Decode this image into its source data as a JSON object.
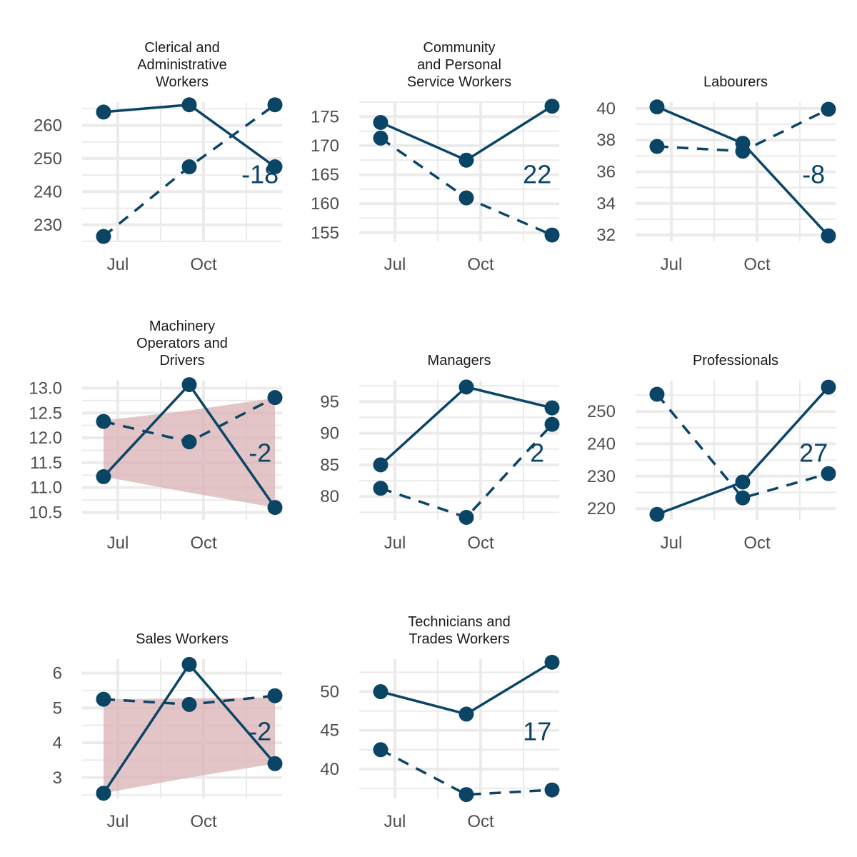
{
  "chart_data": {
    "type": "line",
    "facet_layout": "3 columns, 3 rows (last row has 2 panels)",
    "x_tick_labels": [
      "Jul",
      "Oct"
    ],
    "x_points": [
      "2023-05",
      "2023-08",
      "2023-11"
    ],
    "grid": true,
    "legend": "none",
    "colors": {
      "line": "#0b4566",
      "ribbon": "#d9b1b5",
      "annotation": "#0b4566",
      "grid": "#ebebeb"
    },
    "panels": [
      {
        "title": "Clerical and Administrative Workers",
        "title_lines": [
          "Clerical and",
          "Administrative",
          "Workers"
        ],
        "y_range": [
          225,
          267
        ],
        "y_ticks": [
          230,
          240,
          250,
          260
        ],
        "y_tick_labels": [
          "230",
          "240",
          "250",
          "260"
        ],
        "series": [
          {
            "line_style": "solid",
            "values": [
              264,
              266.2,
              247.5
            ]
          },
          {
            "line_style": "dashed",
            "values": [
              226.5,
              247.5,
              266.2
            ]
          }
        ],
        "ribbon": null,
        "annotation": "-18"
      },
      {
        "title": "Community and Personal Service Workers",
        "title_lines": [
          "Community",
          "and Personal",
          "Service Workers"
        ],
        "y_range": [
          153.5,
          177.5
        ],
        "y_ticks": [
          155,
          160,
          165,
          170,
          175
        ],
        "y_tick_labels": [
          "155",
          "160",
          "165",
          "170",
          "175"
        ],
        "series": [
          {
            "line_style": "solid",
            "values": [
              174,
              167.5,
              176.8
            ]
          },
          {
            "line_style": "dashed",
            "values": [
              171.3,
              161,
              154.6
            ]
          }
        ],
        "ribbon": null,
        "annotation": "22"
      },
      {
        "title": "Labourers",
        "title_lines": [
          "Labourers"
        ],
        "y_range": [
          31.6,
          40.4
        ],
        "y_ticks": [
          32,
          34,
          36,
          38,
          40
        ],
        "y_tick_labels": [
          "32",
          "34",
          "36",
          "38",
          "40"
        ],
        "series": [
          {
            "line_style": "solid",
            "values": [
              40.1,
              37.8,
              31.95
            ]
          },
          {
            "line_style": "dashed",
            "values": [
              37.6,
              37.3,
              39.95
            ]
          }
        ],
        "ribbon": null,
        "annotation": "-8"
      },
      {
        "title": "Machinery Operators and Drivers",
        "title_lines": [
          "Machinery",
          "Operators and",
          "Drivers"
        ],
        "y_range": [
          10.35,
          13.15
        ],
        "y_ticks": [
          10.5,
          11,
          11.5,
          12,
          12.5,
          13
        ],
        "y_tick_labels": [
          "10.5",
          "11.0",
          "11.5",
          "12.0",
          "12.5",
          "13.0"
        ],
        "series": [
          {
            "line_style": "solid",
            "values": [
              11.22,
              13.07,
              10.6
            ]
          },
          {
            "line_style": "dashed",
            "values": [
              12.33,
              11.92,
              12.81
            ]
          }
        ],
        "ribbon": {
          "lower": [
            11.22,
            10.9,
            10.6
          ],
          "upper": [
            12.35,
            12.55,
            12.8
          ]
        },
        "annotation": "-2"
      },
      {
        "title": "Managers",
        "title_lines": [
          "Managers"
        ],
        "y_range": [
          76.3,
          98.3
        ],
        "y_ticks": [
          80,
          85,
          90,
          95
        ],
        "y_tick_labels": [
          "80",
          "85",
          "90",
          "95"
        ],
        "series": [
          {
            "line_style": "solid",
            "values": [
              85,
              97.3,
              94
            ]
          },
          {
            "line_style": "dashed",
            "values": [
              81.3,
              76.7,
              91.4
            ]
          }
        ],
        "ribbon": null,
        "annotation": "2"
      },
      {
        "title": "Professionals",
        "title_lines": [
          "Professionals"
        ],
        "y_range": [
          216.5,
          259.5
        ],
        "y_ticks": [
          220,
          230,
          240,
          250
        ],
        "y_tick_labels": [
          "220",
          "230",
          "240",
          "250"
        ],
        "series": [
          {
            "line_style": "solid",
            "values": [
              218.2,
              228.2,
              257.5
            ]
          },
          {
            "line_style": "dashed",
            "values": [
              255.3,
              223.3,
              230.8
            ]
          }
        ],
        "ribbon": null,
        "annotation": "27"
      },
      {
        "title": "Sales Workers",
        "title_lines": [
          "Sales Workers"
        ],
        "y_range": [
          2.4,
          6.4
        ],
        "y_ticks": [
          3,
          4,
          5,
          6
        ],
        "y_tick_labels": [
          "3",
          "4",
          "5",
          "6"
        ],
        "series": [
          {
            "line_style": "solid",
            "values": [
              2.55,
              6.25,
              3.4
            ]
          },
          {
            "line_style": "dashed",
            "values": [
              5.25,
              5.1,
              5.35
            ]
          }
        ],
        "ribbon": {
          "lower": [
            2.55,
            3.0,
            3.4
          ],
          "upper": [
            5.25,
            5.27,
            5.3
          ]
        },
        "annotation": "-2"
      },
      {
        "title": "Technicians and Trades Workers",
        "title_lines": [
          "Technicians and",
          "Trades Workers"
        ],
        "y_range": [
          36.2,
          54.2
        ],
        "y_ticks": [
          40,
          45,
          50
        ],
        "y_tick_labels": [
          "40",
          "45",
          "50"
        ],
        "series": [
          {
            "line_style": "solid",
            "values": [
              50,
              47.1,
              53.8
            ]
          },
          {
            "line_style": "dashed",
            "values": [
              42.5,
              36.7,
              37.3
            ]
          }
        ],
        "ribbon": null,
        "annotation": "17"
      }
    ]
  }
}
